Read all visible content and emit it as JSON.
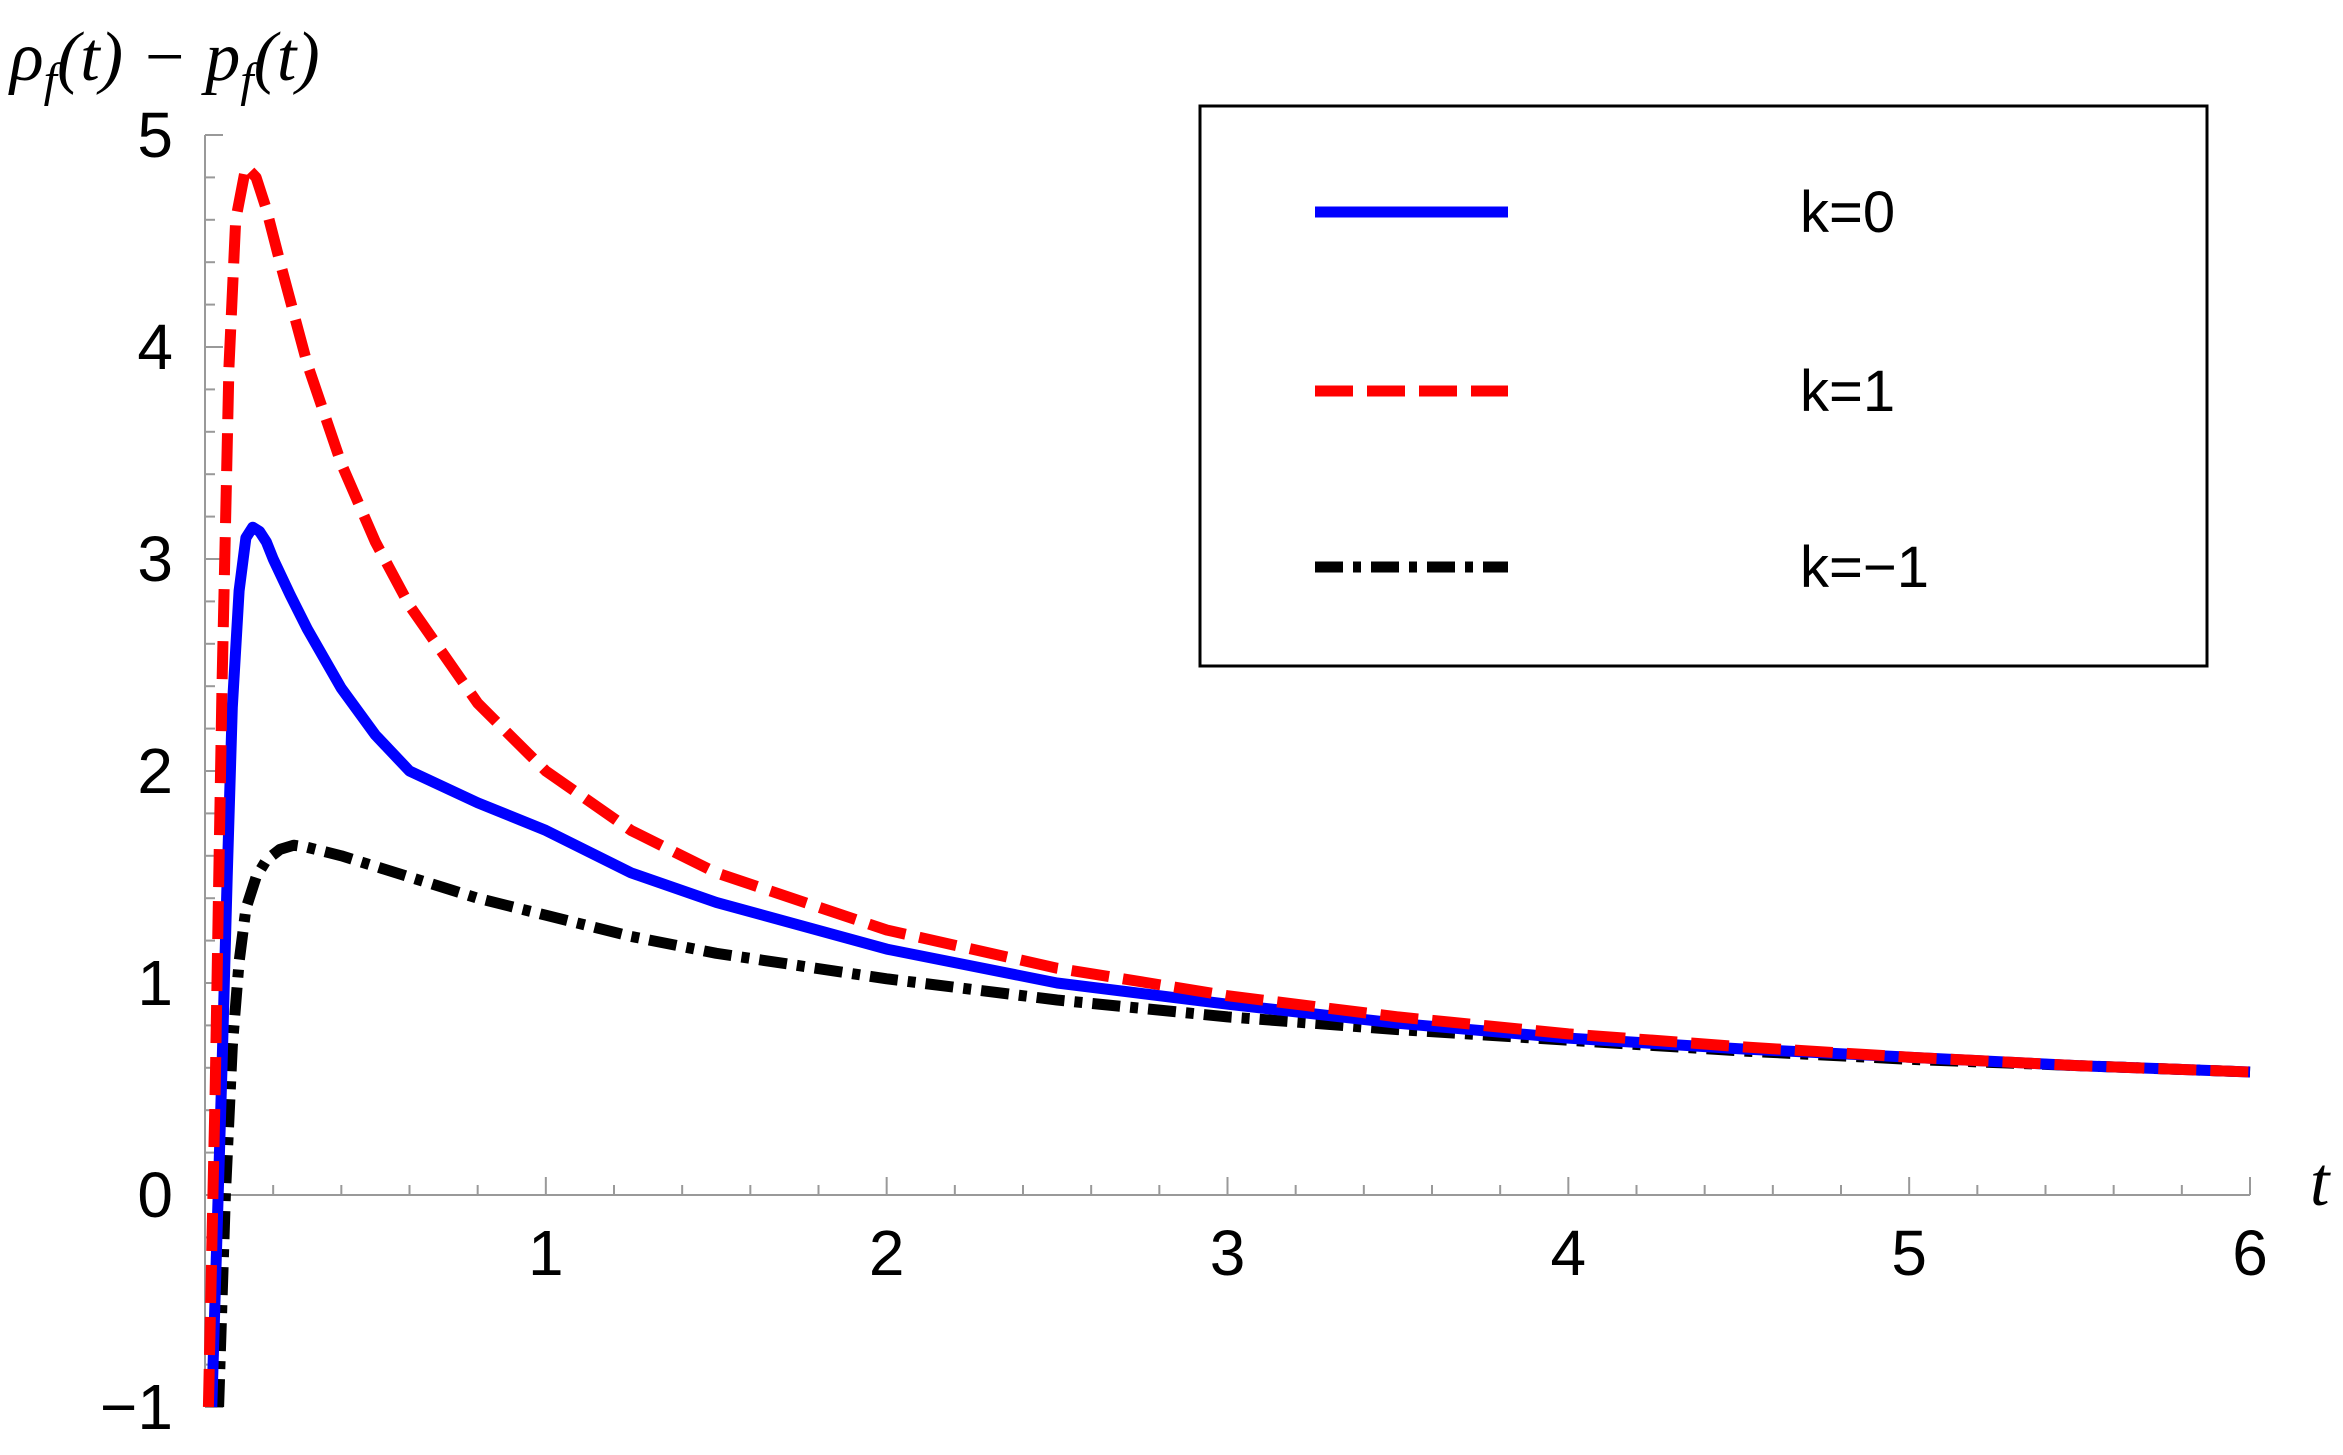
{
  "chart_data": {
    "type": "line",
    "title": "",
    "xlabel": "t",
    "ylabel": "ρ_f(t) − p_f(t)",
    "ylabel_parts": {
      "rho": "ρ",
      "f1": "f",
      "mid": "(t) − p",
      "f2": "f",
      "end": "(t)"
    },
    "xlim": [
      0,
      6
    ],
    "ylim": [
      -1,
      5
    ],
    "x_ticks": [
      1,
      2,
      3,
      4,
      5,
      6
    ],
    "y_ticks": [
      5,
      4,
      3,
      2,
      1,
      0,
      -1
    ],
    "x_tick_labels": [
      "1",
      "2",
      "3",
      "4",
      "5",
      "6"
    ],
    "y_tick_labels": [
      "5",
      "4",
      "3",
      "2",
      "1",
      "0",
      "−1"
    ],
    "grid": false,
    "legend_position": "top-right",
    "series": [
      {
        "name": "k=0",
        "color": "#0000ff",
        "style": "solid",
        "x": [
          0.02,
          0.035,
          0.05,
          0.065,
          0.08,
          0.1,
          0.12,
          0.14,
          0.16,
          0.18,
          0.2,
          0.25,
          0.3,
          0.4,
          0.5,
          0.6,
          0.8,
          1.0,
          1.25,
          1.5,
          2.0,
          2.5,
          3.0,
          3.5,
          4.0,
          4.5,
          5.0,
          5.5,
          6.0
        ],
        "y": [
          -1.0,
          -0.2,
          0.6,
          1.5,
          2.3,
          2.85,
          3.1,
          3.15,
          3.13,
          3.08,
          3.0,
          2.83,
          2.67,
          2.39,
          2.17,
          2.0,
          1.85,
          1.72,
          1.52,
          1.38,
          1.16,
          1.0,
          0.9,
          0.81,
          0.74,
          0.69,
          0.65,
          0.61,
          0.58
        ]
      },
      {
        "name": "k=1",
        "color": "#ff0000",
        "style": "dashed",
        "x": [
          0.01,
          0.03,
          0.05,
          0.07,
          0.09,
          0.12,
          0.15,
          0.18,
          0.22,
          0.3,
          0.4,
          0.5,
          0.6,
          0.8,
          1.0,
          1.25,
          1.5,
          2.0,
          2.5,
          3.0,
          3.5,
          4.0,
          4.5,
          5.0,
          5.5,
          6.0
        ],
        "y": [
          -1.0,
          0.5,
          2.4,
          3.9,
          4.6,
          4.85,
          4.8,
          4.65,
          4.4,
          3.92,
          3.45,
          3.08,
          2.78,
          2.32,
          2.0,
          1.72,
          1.52,
          1.25,
          1.07,
          0.94,
          0.84,
          0.76,
          0.7,
          0.65,
          0.61,
          0.58
        ]
      },
      {
        "name": "k=−1",
        "color": "#000000",
        "style": "dashdot",
        "x": [
          0.04,
          0.06,
          0.08,
          0.1,
          0.12,
          0.15,
          0.18,
          0.22,
          0.26,
          0.3,
          0.4,
          0.5,
          0.6,
          0.8,
          1.0,
          1.25,
          1.5,
          2.0,
          2.5,
          3.0,
          3.5,
          4.0,
          4.5,
          5.0,
          5.5,
          6.0
        ],
        "y": [
          -1.0,
          0.0,
          0.7,
          1.1,
          1.35,
          1.5,
          1.58,
          1.63,
          1.65,
          1.64,
          1.6,
          1.55,
          1.5,
          1.4,
          1.32,
          1.22,
          1.14,
          1.02,
          0.92,
          0.84,
          0.78,
          0.73,
          0.68,
          0.64,
          0.61,
          0.58
        ]
      }
    ]
  }
}
